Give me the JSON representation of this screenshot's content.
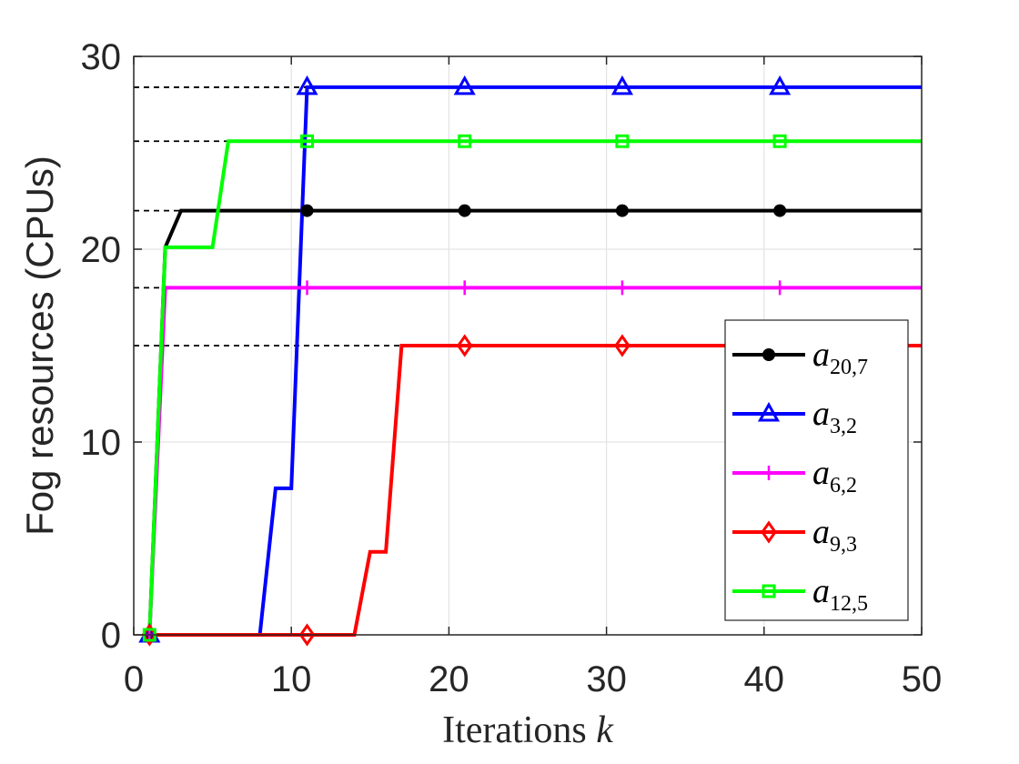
{
  "chart_data": {
    "type": "line",
    "xlabel": "Iterations k",
    "xlabel_text": "Iterations",
    "xlabel_var": "k",
    "ylabel": "Fog resources (CPUs)",
    "xlim": [
      0,
      50
    ],
    "ylim": [
      0,
      30
    ],
    "x_ticks": [
      0,
      10,
      20,
      30,
      40,
      50
    ],
    "y_ticks": [
      0,
      10,
      20,
      30
    ],
    "x_tick_labels": [
      "0",
      "10",
      "20",
      "30",
      "40",
      "50"
    ],
    "y_tick_labels": [
      "0",
      "10",
      "20",
      "30"
    ],
    "grid": true,
    "legend_position": "lower-right",
    "reference_lines": [
      28.4,
      25.6,
      22.0,
      18.0,
      15.0
    ],
    "series": [
      {
        "name": "a_{20,7}",
        "legend_main": "a",
        "legend_sub": "20,7",
        "color": "#000000",
        "marker": "circle",
        "x": [
          1,
          2,
          3,
          50
        ],
        "y": [
          0,
          20.1,
          22.0,
          22.0
        ],
        "marker_x": [
          1,
          11,
          21,
          31,
          41
        ]
      },
      {
        "name": "a_{3,2}",
        "legend_main": "a",
        "legend_sub": "3,2",
        "color": "#0000ff",
        "marker": "triangle",
        "x": [
          1,
          8,
          9,
          10,
          11,
          50
        ],
        "y": [
          0,
          0,
          7.6,
          7.6,
          28.4,
          28.4
        ],
        "marker_x": [
          1,
          11,
          21,
          31,
          41
        ]
      },
      {
        "name": "a_{6,2}",
        "legend_main": "a",
        "legend_sub": "6,2",
        "color": "#ff00ff",
        "marker": "plus",
        "x": [
          1,
          2,
          50
        ],
        "y": [
          0,
          18.0,
          18.0
        ],
        "marker_x": [
          1,
          11,
          21,
          31,
          41
        ]
      },
      {
        "name": "a_{9,3}",
        "legend_main": "a",
        "legend_sub": "9,3",
        "color": "#ff0000",
        "marker": "diamond",
        "x": [
          1,
          14,
          15,
          16,
          17,
          50
        ],
        "y": [
          0,
          0,
          4.3,
          4.3,
          15.0,
          15.0
        ],
        "marker_x": [
          1,
          11,
          21,
          31,
          41
        ]
      },
      {
        "name": "a_{12,5}",
        "legend_main": "a",
        "legend_sub": "12,5",
        "color": "#00ff00",
        "marker": "square",
        "x": [
          1,
          2,
          5,
          6,
          50
        ],
        "y": [
          0,
          20.1,
          20.1,
          25.6,
          25.6
        ],
        "marker_x": [
          1,
          11,
          21,
          31,
          41
        ]
      }
    ]
  }
}
